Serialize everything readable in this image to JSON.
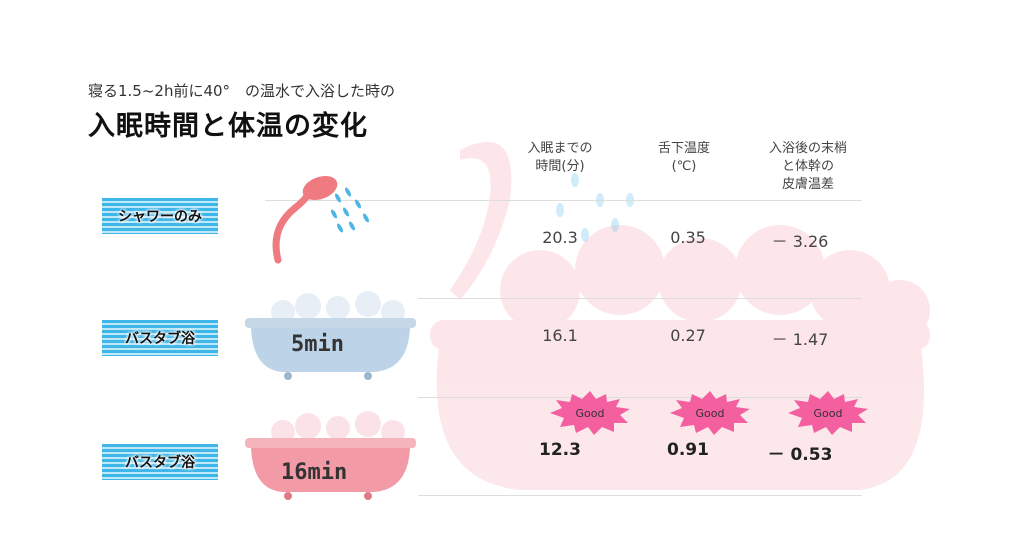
{
  "header": {
    "subtitle": "寝る1.5~2h前に40°　の温水で入浴した時の",
    "title": "入眠時間と体温の変化"
  },
  "columns": [
    {
      "line1": "入眠までの",
      "line2": "時間(分)",
      "line3": ""
    },
    {
      "line1": "舌下温度",
      "line2": "(℃)",
      "line3": ""
    },
    {
      "line1": "入浴後の末梢",
      "line2": "と体幹の",
      "line3": "皮膚温差"
    }
  ],
  "rows": [
    {
      "label": "シャワーのみ",
      "tub_text": "",
      "values": [
        "20.3",
        "0.35",
        "－ 3.26"
      ]
    },
    {
      "label": "バスタブ浴",
      "tub_text": "5min",
      "values": [
        "16.1",
        "0.27",
        "－ 1.47"
      ]
    },
    {
      "label": "バスタブ浴",
      "tub_text": "16min",
      "values": [
        "12.3",
        "0.91",
        "－ 0.53"
      ]
    }
  ],
  "badges": [
    "Good",
    "Good",
    "Good"
  ],
  "colors": {
    "label_stripe": "#3fb6e8",
    "good_badge": "#f45fa0",
    "tub_blue": "#bcd3e8",
    "tub_pink": "#f29aa6",
    "shower_pink": "#ef7b80",
    "water": "#4db6e6"
  }
}
